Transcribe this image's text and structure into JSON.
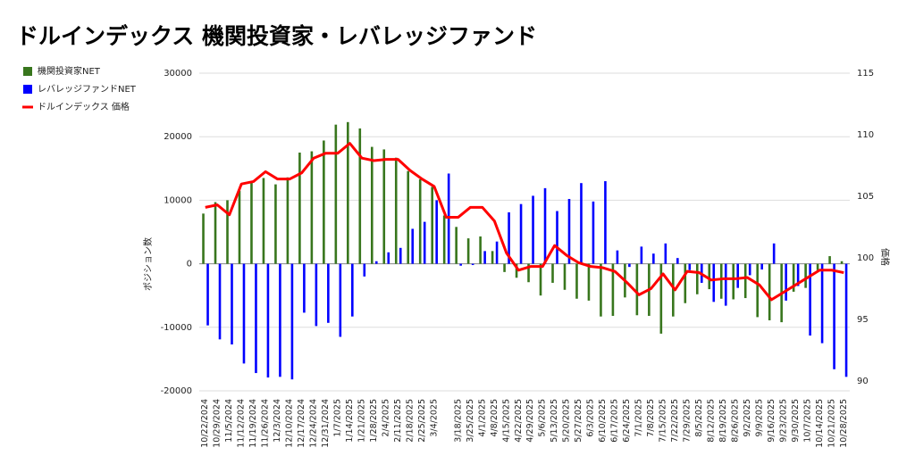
{
  "chart_data": {
    "type": "bar_line",
    "title": "ドルインデックス 機関投資家・レバレッジファンド",
    "y_label": "ポジション数",
    "y2_label": "価格",
    "categories": [
      "10/22/2024",
      "10/29/2024",
      "11/5/2024",
      "11/12/2024",
      "11/19/2024",
      "11/26/2024",
      "12/3/2024",
      "12/10/2024",
      "12/17/2024",
      "12/24/2024",
      "12/31/2024",
      "1/7/2025",
      "1/14/2025",
      "1/21/2025",
      "1/28/2025",
      "2/4/2025",
      "2/11/2025",
      "2/18/2025",
      "2/25/2025",
      "3/4/2025",
      null,
      "3/18/2025",
      "3/25/2025",
      "4/1/2025",
      "4/8/2025",
      "4/15/2025",
      "4/22/2025",
      "4/29/2025",
      "5/6/2025",
      "5/13/2025",
      "5/20/2025",
      "5/27/2025",
      "6/3/2025",
      "6/10/2025",
      "6/17/2025",
      "6/24/2025",
      "7/1/2025",
      "7/8/2025",
      "7/15/2025",
      "7/22/2025",
      "7/29/2025",
      "8/5/2025",
      "8/12/2025",
      "8/19/2025",
      "8/26/2025",
      "9/2/2025",
      "9/9/2025",
      "9/16/2025",
      "9/23/2025",
      "9/30/2025",
      "10/7/2025",
      "10/14/2025",
      "10/21/2025",
      "10/28/2025"
    ],
    "series": [
      {
        "name": "機関投資家NET",
        "color": "#38761d",
        "values": [
          7900,
          9700,
          10000,
          11500,
          12900,
          13500,
          12500,
          13600,
          17500,
          17700,
          19400,
          21900,
          22300,
          21300,
          18400,
          18000,
          16700,
          14600,
          13300,
          12100,
          7600,
          5800,
          4000,
          4300,
          2000,
          -1300,
          -2200,
          -2900,
          -5000,
          -3000,
          -4100,
          -5500,
          -5800,
          -8300,
          -8200,
          -5300,
          -8100,
          -8200,
          -11000,
          -8300,
          -6200,
          -4800,
          -4000,
          -5500,
          -5600,
          -5400,
          -8400,
          -8900,
          -9200,
          -4400,
          -3800,
          -1000,
          1200,
          400
        ]
      },
      {
        "name": "レバレッジファンドNET",
        "color": "#0000ff",
        "values": [
          -9700,
          -11900,
          -12700,
          -15700,
          -17200,
          -17900,
          -17800,
          -18200,
          -7700,
          -9800,
          -9300,
          -11500,
          -8300,
          -2000,
          400,
          1800,
          2500,
          5500,
          6600,
          10000,
          14200,
          -300,
          -200,
          2000,
          3500,
          8100,
          9400,
          10700,
          11900,
          8300,
          10200,
          12700,
          9800,
          13000,
          2100,
          -500,
          2700,
          1600,
          3200,
          900,
          -1000,
          -3000,
          -6000,
          -6600,
          -3800,
          -1800,
          -900,
          3200,
          -5800,
          -3500,
          -11300,
          -12500,
          -16600,
          -17800
        ]
      },
      {
        "name": "ドルインデックス 価格",
        "color": "#ff0000",
        "axis": "y2",
        "values": [
          104.1,
          104.3,
          103.5,
          106.0,
          106.2,
          107.0,
          106.4,
          106.4,
          106.9,
          108.1,
          108.5,
          108.5,
          109.3,
          108.1,
          107.9,
          108.0,
          108.0,
          107.1,
          106.4,
          105.8,
          103.3,
          103.3,
          104.1,
          104.1,
          103.0,
          100.4,
          99.0,
          99.3,
          99.3,
          101.0,
          100.2,
          99.6,
          99.3,
          99.2,
          98.9,
          98.0,
          97.0,
          97.5,
          98.7,
          97.4,
          98.9,
          98.8,
          98.2,
          98.3,
          98.3,
          98.4,
          97.8,
          96.6,
          97.2,
          97.8,
          98.4,
          99.0,
          99.0,
          98.8
        ]
      }
    ],
    "ylim": [
      -20000,
      30000
    ],
    "yticks": [
      -20000,
      -10000,
      0,
      10000,
      20000,
      30000
    ],
    "y2lim": [
      89.2,
      115
    ],
    "y2ticks": [
      90,
      95,
      100,
      105,
      110,
      115
    ],
    "grid": true,
    "legend": "left"
  }
}
